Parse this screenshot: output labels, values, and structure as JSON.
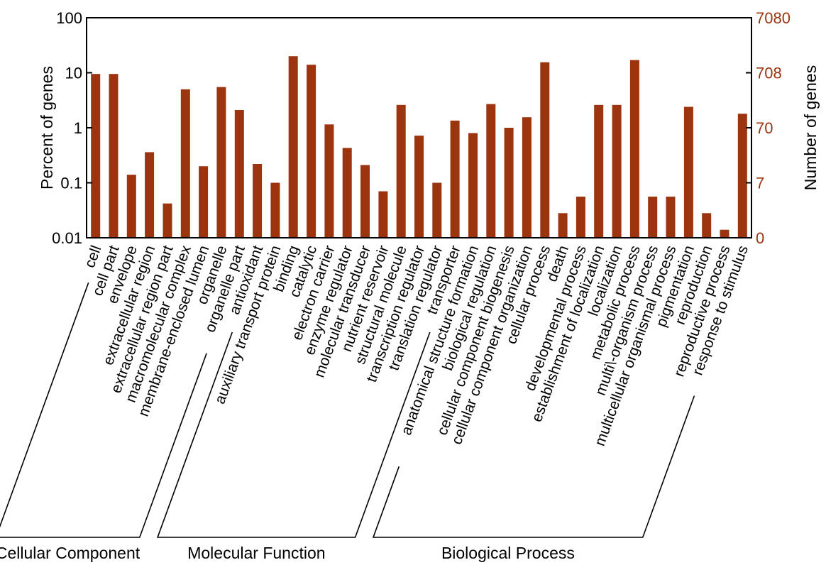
{
  "chart_data": {
    "type": "bar",
    "ylabel": "Percent of genes",
    "y2label": "Number of genes",
    "yscale": "log",
    "ylim": [
      0.01,
      100
    ],
    "y_ticks": [
      "100",
      "10",
      "1",
      "0.1",
      "0.01"
    ],
    "y2_ticks": [
      "7080",
      "708",
      "70",
      "7",
      "0"
    ],
    "colors": {
      "bar": "#9c3410",
      "right_axis": "#9c3410",
      "axis": "#000000"
    },
    "categories": [
      "cell",
      "cell part",
      "envelope",
      "extracellular region",
      "extracellular region part",
      "macromolecular complex",
      "membrane-enclosed lumen",
      "organelle",
      "organelle part",
      "antioxidant",
      "auxiliary transport protein",
      "binding",
      "catalytic",
      "electron carrier",
      "enzyme regulator",
      "molecular transducer",
      "nutrient reservoir",
      "structural molecule",
      "transcription regulator",
      "translation regulator",
      "transporter",
      "anatomical structure formation",
      "biological regulation",
      "cellular component biogenesis",
      "cellular component organization",
      "cellular process",
      "death",
      "developmental process",
      "establishment of localization",
      "localization",
      "metabolic process",
      "multi\\-organism process",
      "multicellular organismal process",
      "pigmentation",
      "reproduction",
      "reproductive process",
      "response to stimulus"
    ],
    "values": [
      9.5,
      9.5,
      0.14,
      0.36,
      0.042,
      5.0,
      0.2,
      5.5,
      2.1,
      0.22,
      0.1,
      20,
      14,
      1.15,
      0.43,
      0.21,
      0.07,
      2.6,
      0.72,
      0.1,
      1.35,
      0.8,
      2.7,
      1.0,
      1.55,
      15.5,
      0.028,
      0.056,
      2.6,
      2.6,
      17,
      0.056,
      0.056,
      2.4,
      0.028,
      0.014,
      1.8
    ],
    "groups": [
      {
        "name": "Cellular Component",
        "start": 0,
        "end": 8
      },
      {
        "name": "Molecular Function",
        "start": 9,
        "end": 20
      },
      {
        "name": "Biological Process",
        "start": 21,
        "end": 36
      }
    ]
  }
}
